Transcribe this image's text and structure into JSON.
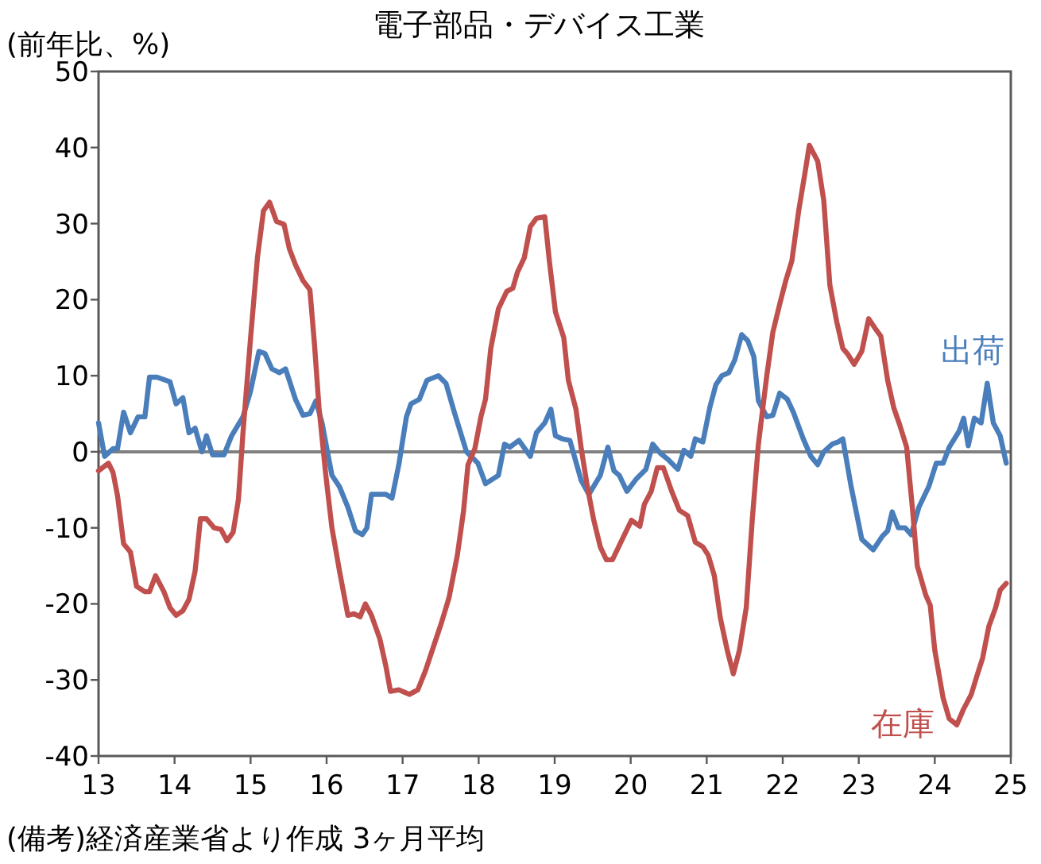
{
  "chart_data": {
    "type": "line",
    "title": "電子部品・デバイス工業",
    "ylabel": "(前年比、%)",
    "annotations": [
      "(備考)経済産業省より作成 3ヶ月平均"
    ],
    "xlim": [
      13,
      25
    ],
    "xticks": [
      13,
      14,
      15,
      16,
      17,
      18,
      19,
      20,
      21,
      22,
      23,
      24,
      25
    ],
    "ylim": [
      -40,
      50
    ],
    "yticks": [
      -40,
      -30,
      -20,
      -10,
      0,
      10,
      20,
      30,
      40,
      50
    ],
    "grid": false,
    "ref_lines": [
      {
        "axis": "y",
        "value": 0,
        "color": "#808080"
      }
    ],
    "series": [
      {
        "name": "出荷",
        "color": "#4a7ebb",
        "x": [
          13.0,
          13.08,
          13.19,
          13.25,
          13.33,
          13.42,
          13.52,
          13.61,
          13.67,
          13.77,
          13.94,
          14.02,
          14.11,
          14.19,
          14.27,
          14.36,
          14.42,
          14.5,
          14.65,
          14.75,
          14.9,
          15.0,
          15.11,
          15.19,
          15.28,
          15.38,
          15.46,
          15.59,
          15.69,
          15.78,
          15.86,
          15.94,
          16.07,
          16.17,
          16.28,
          16.38,
          16.47,
          16.53,
          16.59,
          16.78,
          16.86,
          16.95,
          17.05,
          17.11,
          17.22,
          17.32,
          17.47,
          17.57,
          17.68,
          17.84,
          17.99,
          18.09,
          18.26,
          18.34,
          18.41,
          18.53,
          18.68,
          18.76,
          18.87,
          18.95,
          19.01,
          19.1,
          19.2,
          19.35,
          19.45,
          19.6,
          19.7,
          19.78,
          19.85,
          19.95,
          20.08,
          20.2,
          20.29,
          20.39,
          20.49,
          20.62,
          20.7,
          20.79,
          20.85,
          20.95,
          21.04,
          21.12,
          21.2,
          21.29,
          21.37,
          21.46,
          21.54,
          21.62,
          21.68,
          21.79,
          21.87,
          21.96,
          22.06,
          22.14,
          22.27,
          22.37,
          22.46,
          22.54,
          22.65,
          22.73,
          22.79,
          22.9,
          23.04,
          23.19,
          23.31,
          23.38,
          23.44,
          23.52,
          23.61,
          23.69,
          23.79,
          23.92,
          24.02,
          24.11,
          24.19,
          24.32,
          24.38,
          24.44,
          24.52,
          24.61,
          24.69,
          24.77,
          24.86,
          24.94
        ],
        "values": [
          3.8,
          -0.6,
          0.4,
          0.4,
          5.2,
          2.5,
          4.6,
          4.6,
          9.8,
          9.8,
          9.2,
          6.3,
          7.1,
          2.5,
          3.1,
          0,
          2.1,
          -0.4,
          -0.4,
          2.1,
          4.6,
          8,
          13.2,
          12.9,
          10.9,
          10.4,
          10.9,
          6.9,
          4.8,
          5,
          6.7,
          3.8,
          -3.1,
          -4.6,
          -7.3,
          -10.4,
          -10.9,
          -10,
          -5.6,
          -5.6,
          -6.1,
          -1.7,
          4.6,
          6.3,
          6.9,
          9.4,
          10,
          9,
          5.2,
          0,
          -1.5,
          -4.2,
          -3.1,
          1,
          0.6,
          1.5,
          -0.6,
          2.5,
          3.8,
          5.6,
          2.1,
          1.7,
          1.5,
          -3.8,
          -5.6,
          -3.1,
          0.6,
          -2.5,
          -3.1,
          -5.2,
          -3.5,
          -2.3,
          1,
          -0.2,
          -1,
          -2.3,
          0.2,
          -0.6,
          1.7,
          1.3,
          5.8,
          8.8,
          10,
          10.4,
          12.1,
          15.4,
          14.6,
          12.5,
          6.7,
          4.6,
          4.8,
          7.7,
          6.9,
          5.2,
          1.7,
          -0.6,
          -1.7,
          0,
          1,
          1.3,
          1.7,
          -4.6,
          -11.5,
          -12.9,
          -11.1,
          -10.4,
          -7.9,
          -10,
          -10,
          -10.9,
          -7.3,
          -4.6,
          -1.5,
          -1.5,
          0.6,
          2.7,
          4.4,
          0.8,
          4.4,
          3.8,
          9,
          3.8,
          2.1,
          -1.5
        ]
      },
      {
        "name": "在庫",
        "color": "#c0504d",
        "x": [
          13.0,
          13.13,
          13.19,
          13.25,
          13.33,
          13.42,
          13.5,
          13.61,
          13.67,
          13.75,
          13.86,
          13.94,
          14.02,
          14.11,
          14.19,
          14.27,
          14.34,
          14.42,
          14.52,
          14.61,
          14.69,
          14.77,
          14.84,
          14.9,
          15.0,
          15.09,
          15.17,
          15.25,
          15.34,
          15.44,
          15.51,
          15.59,
          15.69,
          15.78,
          15.84,
          15.9,
          15.99,
          16.07,
          16.17,
          16.28,
          16.36,
          16.44,
          16.51,
          16.59,
          16.7,
          16.78,
          16.84,
          16.95,
          17.09,
          17.2,
          17.3,
          17.41,
          17.51,
          17.61,
          17.72,
          17.8,
          17.86,
          17.95,
          18.03,
          18.09,
          18.16,
          18.26,
          18.37,
          18.45,
          18.51,
          18.6,
          18.68,
          18.76,
          18.87,
          18.93,
          19.01,
          19.12,
          19.18,
          19.28,
          19.35,
          19.43,
          19.51,
          19.6,
          19.68,
          19.76,
          19.87,
          20.01,
          20.12,
          20.18,
          20.27,
          20.35,
          20.43,
          20.54,
          20.64,
          20.75,
          20.85,
          20.95,
          21.02,
          21.1,
          21.18,
          21.27,
          21.35,
          21.43,
          21.52,
          21.6,
          21.68,
          21.79,
          21.87,
          21.96,
          22.04,
          22.12,
          22.21,
          22.29,
          22.35,
          22.46,
          22.54,
          22.62,
          22.71,
          22.79,
          22.85,
          22.94,
          23.04,
          23.13,
          23.21,
          23.29,
          23.38,
          23.46,
          23.54,
          23.63,
          23.71,
          23.77,
          23.88,
          23.94,
          24.0,
          24.11,
          24.19,
          24.29,
          24.38,
          24.48,
          24.55,
          24.63,
          24.71,
          24.8,
          24.86,
          24.94
        ],
        "values": [
          -2.5,
          -1.5,
          -2.7,
          -5.8,
          -12.1,
          -13.2,
          -17.7,
          -18.4,
          -18.4,
          -16.3,
          -18.4,
          -20.5,
          -21.5,
          -20.9,
          -19.4,
          -15.7,
          -8.8,
          -8.8,
          -10,
          -10.2,
          -11.7,
          -10.6,
          -6.3,
          2.5,
          15,
          25.5,
          31.7,
          32.8,
          30.3,
          29.9,
          26.7,
          24.6,
          22.5,
          21.3,
          14.2,
          5.8,
          -3.1,
          -10,
          -15.7,
          -21.5,
          -21.3,
          -21.7,
          -20,
          -21.5,
          -24.6,
          -28.2,
          -31.5,
          -31.3,
          -31.9,
          -31.3,
          -28.8,
          -25.5,
          -22.5,
          -19.2,
          -13.6,
          -7.9,
          -1.7,
          0.4,
          4.6,
          6.9,
          13.6,
          18.8,
          21.1,
          21.5,
          23.6,
          25.5,
          29.6,
          30.7,
          30.9,
          25.1,
          18.4,
          15,
          9.4,
          5.6,
          0.4,
          -4.6,
          -8.8,
          -12.5,
          -14.2,
          -14.2,
          -11.9,
          -9,
          -9.8,
          -6.9,
          -5.2,
          -2.1,
          -2.1,
          -5.2,
          -7.7,
          -8.4,
          -11.9,
          -12.5,
          -13.6,
          -16.3,
          -21.9,
          -26.1,
          -29.2,
          -26.1,
          -20.5,
          -8.8,
          1,
          10,
          15.7,
          19.4,
          22.5,
          25.1,
          31.7,
          36.5,
          40.3,
          38.2,
          33,
          21.9,
          17.1,
          13.6,
          12.9,
          11.5,
          13.2,
          17.5,
          16.3,
          15.2,
          9.4,
          5.8,
          3.5,
          0.6,
          -7.9,
          -15,
          -18.8,
          -20.2,
          -26.1,
          -32.4,
          -35.1,
          -35.9,
          -33.8,
          -31.9,
          -29.6,
          -27.1,
          -23,
          -20.5,
          -18.2,
          -17.3
        ]
      }
    ]
  }
}
